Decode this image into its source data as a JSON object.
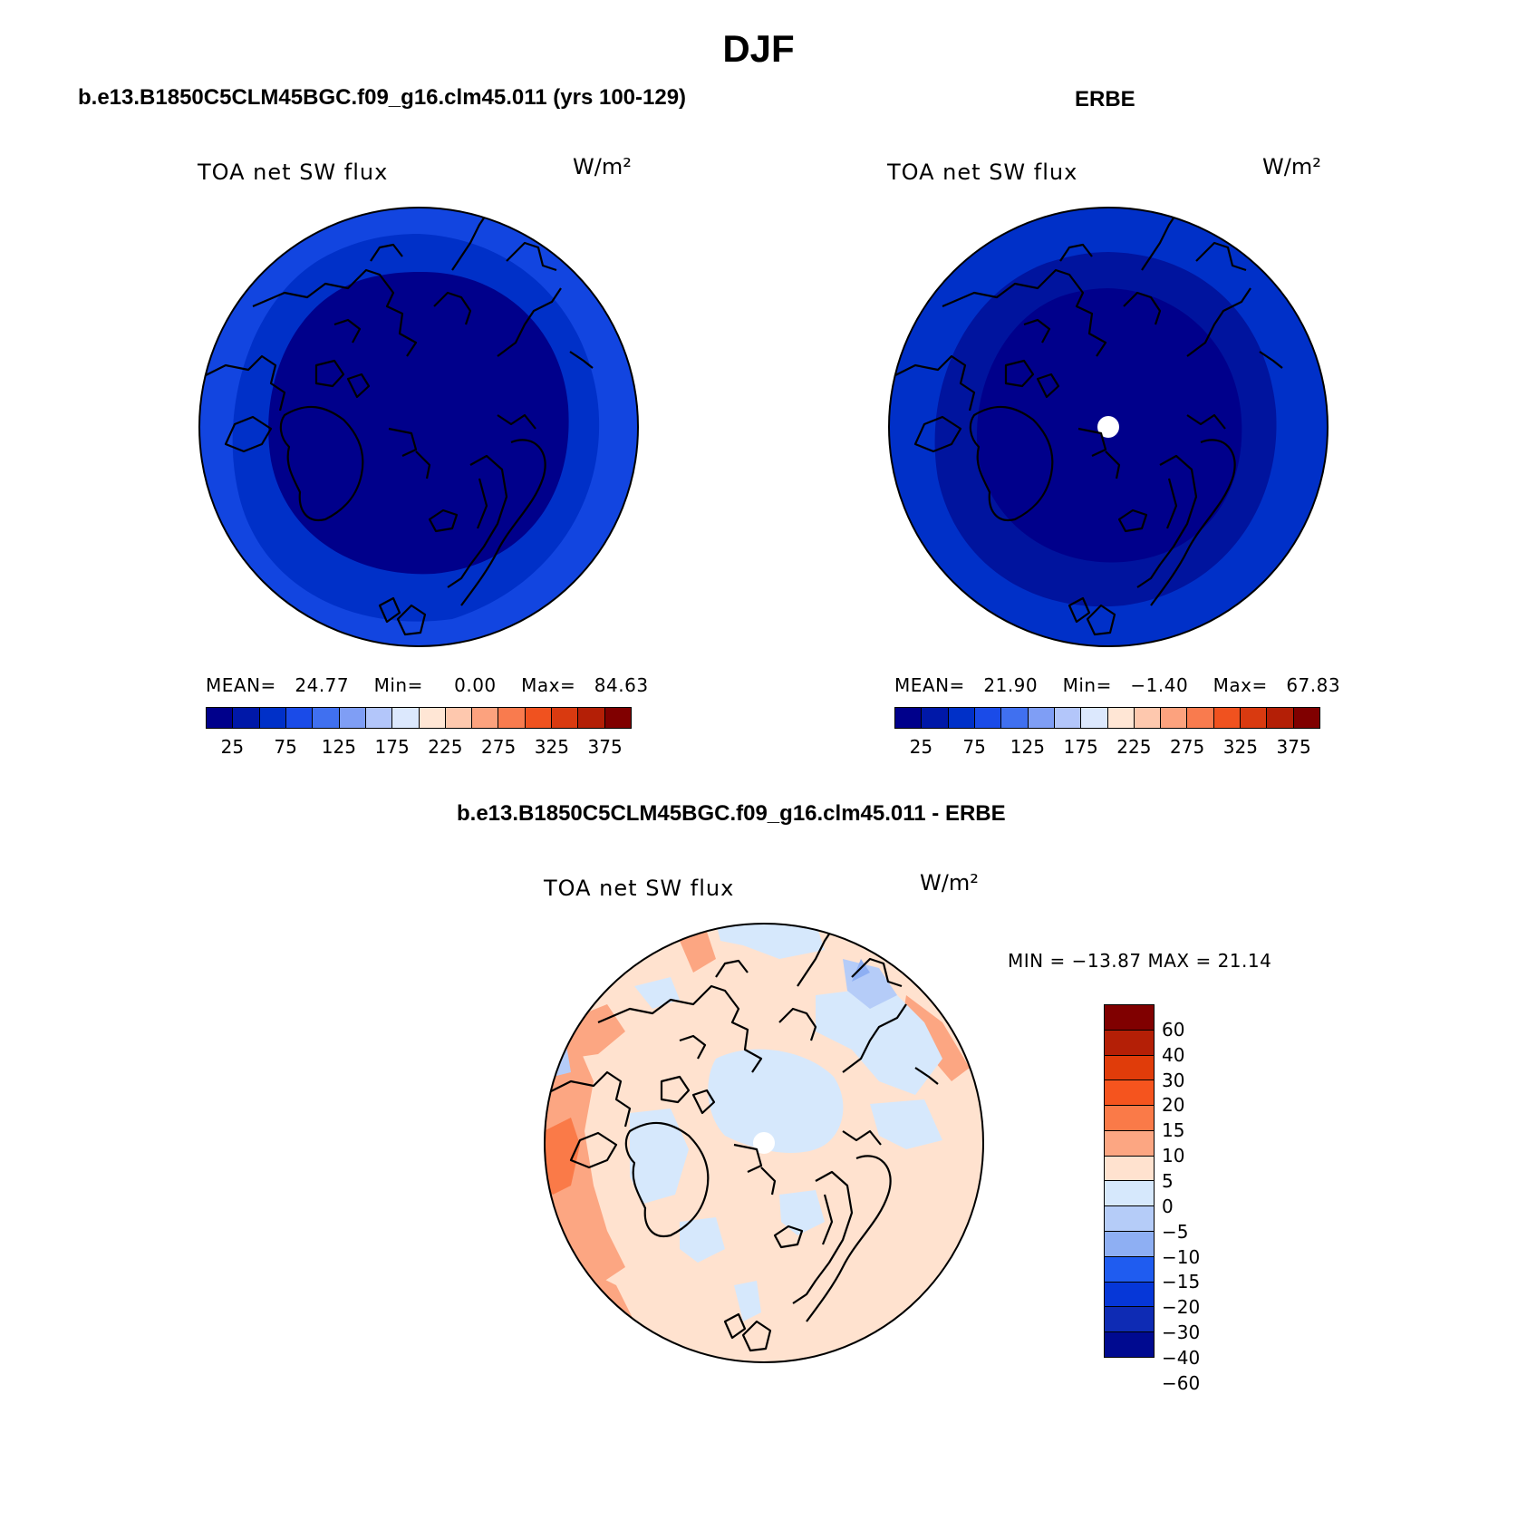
{
  "title": "DJF",
  "panels": [
    {
      "id": "model",
      "heading": "b.e13.B1850C5CLM45BGC.f09_g16.clm45.011 (yrs 100-129)",
      "variable": "TOA net SW flux",
      "units": "W/m²",
      "stats": {
        "mean_label": "MEAN=",
        "mean": "24.77",
        "min_label": "Min=",
        "min": "0.00",
        "max_label": "Max=",
        "max": "84.63"
      },
      "fill_colors": [
        "#00008b",
        "#0030c8",
        "#1245e0"
      ],
      "has_pole_hole": false
    },
    {
      "id": "obs",
      "heading": "ERBE",
      "variable": "TOA net SW flux",
      "units": "W/m²",
      "stats": {
        "mean_label": "MEAN=",
        "mean": "21.90",
        "min_label": "Min=",
        "min": "−1.40",
        "max_label": "Max=",
        "max": "67.83"
      },
      "fill_colors": [
        "#00008b",
        "#00149e",
        "#0030c8"
      ],
      "has_pole_hole": true
    },
    {
      "id": "diff",
      "heading": "b.e13.B1850C5CLM45BGC.f09_g16.clm45.011 - ERBE",
      "variable": "TOA net SW flux",
      "units": "W/m²",
      "stats_text": "MIN = −13.87 MAX =  21.14",
      "has_pole_hole": true
    }
  ],
  "colorbars": {
    "absolute": {
      "orientation": "horizontal",
      "colors": [
        "#00008b",
        "#0018a8",
        "#0030c8",
        "#1a4be8",
        "#4070f0",
        "#7f9ef5",
        "#b3c6fa",
        "#dce8fd",
        "#ffe6d5",
        "#fec8ae",
        "#fca27e",
        "#f97b4e",
        "#f0521f",
        "#d93a10",
        "#b41f06",
        "#800000"
      ],
      "tick_labels": [
        "25",
        "75",
        "125",
        "175",
        "225",
        "275",
        "325",
        "375"
      ]
    },
    "difference": {
      "orientation": "vertical",
      "colors": [
        "#800000",
        "#b41f06",
        "#e03c0a",
        "#f5541e",
        "#fa7a48",
        "#fca682",
        "#ffe2cf",
        "#d6e8fc",
        "#b5ccf8",
        "#8eaff3",
        "#1f5cf0",
        "#0637d8",
        "#0e2bb4",
        "#000a90"
      ],
      "tick_labels": [
        "60",
        "40",
        "30",
        "20",
        "15",
        "10",
        "5",
        "0",
        "−5",
        "−10",
        "−15",
        "−20",
        "−30",
        "−40",
        "−60"
      ]
    }
  }
}
